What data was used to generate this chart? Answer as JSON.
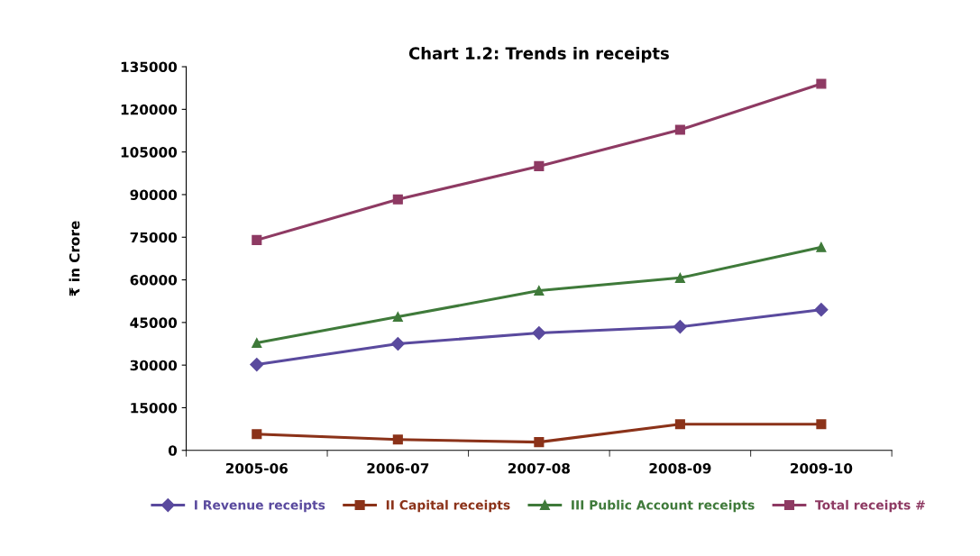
{
  "chart_data": {
    "type": "line",
    "title": "Chart 1.2: Trends in receipts",
    "ylabel": "₹ in Crore",
    "categories": [
      "2005-06",
      "2006-07",
      "2007-08",
      "2008-09",
      "2009-10"
    ],
    "series": [
      {
        "name": "I Revenue receipts",
        "color": "#5a4a9e",
        "marker": "diamond",
        "values": [
          30200,
          37500,
          41300,
          43500,
          49500
        ]
      },
      {
        "name": "II Capital receipts",
        "color": "#8b3219",
        "marker": "square",
        "values": [
          5700,
          3800,
          2900,
          9200,
          9200
        ]
      },
      {
        "name": "III Public Account receipts",
        "color": "#3f7a3a",
        "marker": "triangle",
        "values": [
          37800,
          47000,
          56200,
          60700,
          71500
        ]
      },
      {
        "name": "Total receipts #",
        "color": "#8e3a63",
        "marker": "square",
        "values": [
          74000,
          88300,
          100000,
          112800,
          129000
        ]
      }
    ],
    "ylim": [
      0,
      135000
    ],
    "yticks": [
      0,
      15000,
      30000,
      45000,
      60000,
      75000,
      90000,
      105000,
      120000,
      135000
    ],
    "grid": false,
    "legend": "bottom",
    "line_style": "solid"
  }
}
